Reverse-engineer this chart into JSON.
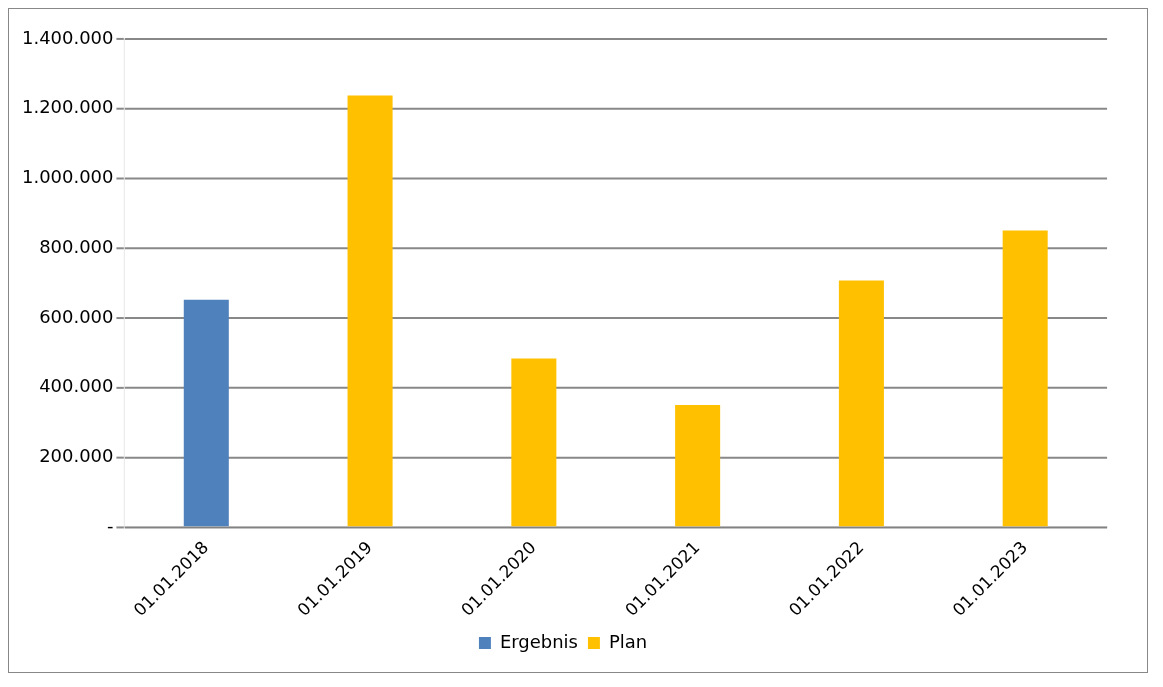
{
  "chart_data": {
    "type": "bar",
    "categories": [
      "01.01.2018",
      "01.01.2019",
      "01.01.2020",
      "01.01.2021",
      "01.01.2022",
      "01.01.2023"
    ],
    "series": [
      {
        "name": "Ergebnis",
        "color": "#4f81bd",
        "values": [
          652000,
          null,
          null,
          null,
          null,
          null
        ]
      },
      {
        "name": "Plan",
        "color": "#ffc000",
        "values": [
          null,
          1238000,
          484000,
          350000,
          707000,
          851000
        ]
      }
    ],
    "ylim": [
      0,
      1400000
    ],
    "yticks": [
      {
        "value": 0,
        "label": "-"
      },
      {
        "value": 200000,
        "label": "200.000"
      },
      {
        "value": 400000,
        "label": "400.000"
      },
      {
        "value": 600000,
        "label": "600.000"
      },
      {
        "value": 800000,
        "label": "800.000"
      },
      {
        "value": 1000000,
        "label": "1.000.000"
      },
      {
        "value": 1200000,
        "label": "1.200.000"
      },
      {
        "value": 1400000,
        "label": "1.400.000"
      }
    ],
    "grid": "y",
    "legend": "bottom"
  }
}
